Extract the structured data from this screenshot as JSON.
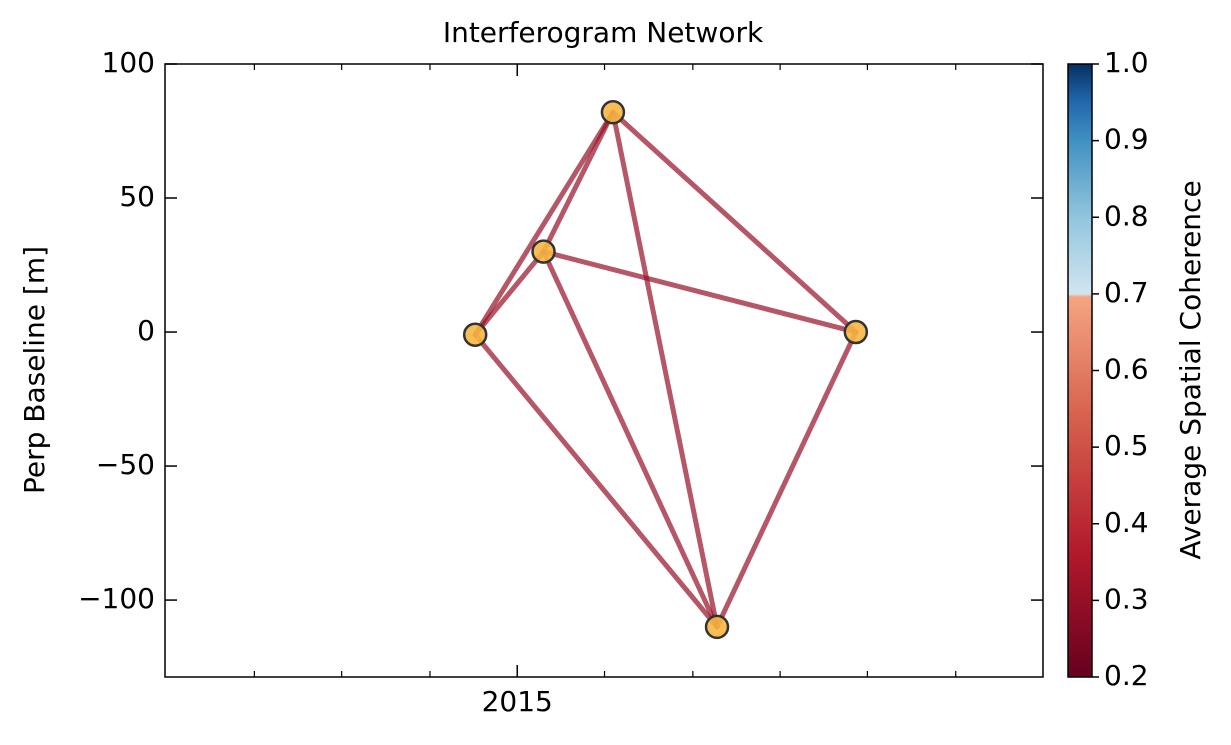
{
  "chart_data": {
    "type": "network",
    "title": "Interferogram Network",
    "y_label": "Perp Baseline [m]",
    "xlim": [
      2014.665,
      2015.5
    ],
    "xticks": [
      {
        "value": 2015,
        "label": "2015"
      }
    ],
    "xminorticks": [
      2014.75,
      2014.833,
      2014.917,
      2015.083,
      2015.167,
      2015.25,
      2015.333,
      2015.417
    ],
    "ylim": [
      -128.7,
      100
    ],
    "yticks": [
      {
        "value": -100,
        "label": "−100"
      },
      {
        "value": -50,
        "label": "−50"
      },
      0,
      50,
      100
    ],
    "nodes": {
      "x": [
        2014.96,
        2015.025,
        2015.091,
        2015.19,
        2015.322
      ],
      "y": [
        -1,
        30,
        82,
        -110,
        0
      ],
      "color": "#f7b643"
    },
    "edges": [
      {
        "source": 0,
        "target": 1,
        "coherence": 0.3
      },
      {
        "source": 0,
        "target": 2,
        "coherence": 0.3
      },
      {
        "source": 0,
        "target": 3,
        "coherence": 0.3
      },
      {
        "source": 1,
        "target": 2,
        "coherence": 0.3
      },
      {
        "source": 1,
        "target": 4,
        "coherence": 0.3
      },
      {
        "source": 1,
        "target": 3,
        "coherence": 0.3
      },
      {
        "source": 2,
        "target": 3,
        "coherence": 0.3
      },
      {
        "source": 2,
        "target": 4,
        "coherence": 0.3
      },
      {
        "source": 3,
        "target": 4,
        "coherence": 0.3
      }
    ],
    "colorbar": {
      "label": "Average Spatial Coherence",
      "colormap": "RdBu",
      "lim": [
        0.2,
        1.0
      ],
      "ticks": [
        0.2,
        0.3,
        0.4,
        0.5,
        0.6,
        0.7,
        0.8,
        0.9,
        {
          "value": 1,
          "label": "1.0"
        }
      ]
    }
  }
}
